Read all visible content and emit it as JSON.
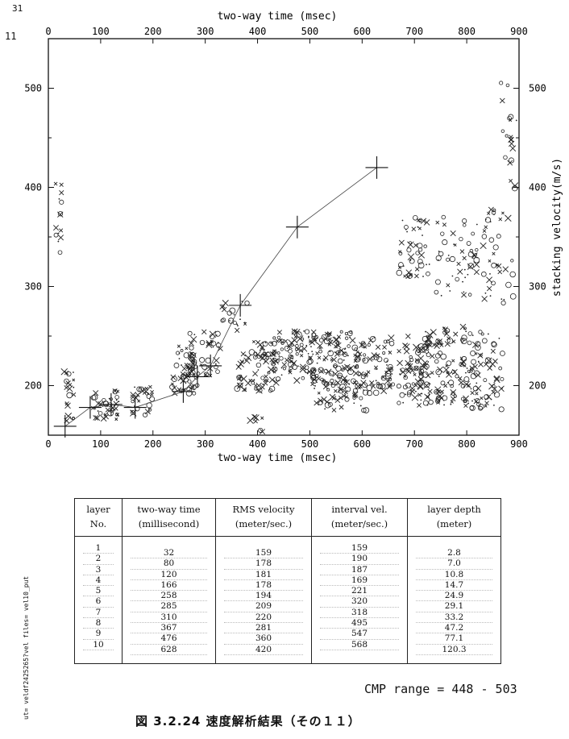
{
  "page_mark_top": "31",
  "page_mark_left": "11",
  "chart_data": {
    "type": "scatter",
    "xlabel": "two-way time (msec)",
    "ylabel": "stacking velocity(m/s)",
    "xlim": [
      0,
      900
    ],
    "ylim": [
      150,
      550
    ],
    "xticks": [
      0,
      100,
      200,
      300,
      400,
      500,
      600,
      700,
      800,
      900
    ],
    "yticks": [
      200,
      300,
      400,
      500
    ],
    "picked_curve": {
      "x": [
        32,
        80,
        120,
        166,
        258,
        285,
        310,
        367,
        476,
        628
      ],
      "y": [
        159,
        178,
        181,
        178,
        194,
        209,
        220,
        281,
        360,
        420
      ]
    }
  },
  "table": {
    "headers": [
      [
        "layer",
        "No."
      ],
      [
        "two-way time",
        "(millisecond)"
      ],
      [
        "RMS velocity",
        "(meter/sec.)"
      ],
      [
        "interval vel.",
        "(meter/sec.)"
      ],
      [
        "layer depth",
        "(meter)"
      ]
    ],
    "layer_no": [
      "1",
      "2",
      "3",
      "4",
      "5",
      "6",
      "7",
      "8",
      "9",
      "10"
    ],
    "two_way_time": [
      "32",
      "80",
      "120",
      "166",
      "258",
      "285",
      "310",
      "367",
      "476",
      "628"
    ],
    "rms_velocity": [
      "159",
      "178",
      "181",
      "178",
      "194",
      "209",
      "220",
      "281",
      "360",
      "420"
    ],
    "interval_vel": [
      "159",
      "190",
      "187",
      "169",
      "221",
      "320",
      "318",
      "495",
      "547",
      "568"
    ],
    "layer_depth": [
      "2.8",
      "7.0",
      "10.8",
      "14.7",
      "24.9",
      "29.1",
      "33.2",
      "47.2",
      "77.1",
      "120.3"
    ]
  },
  "cmp_range": "CMP range = 448 - 503",
  "caption": "図 3.2.24 速度解析結果（その１１）",
  "side_text": "ut= veldf2425265?vel files= vel10_put"
}
